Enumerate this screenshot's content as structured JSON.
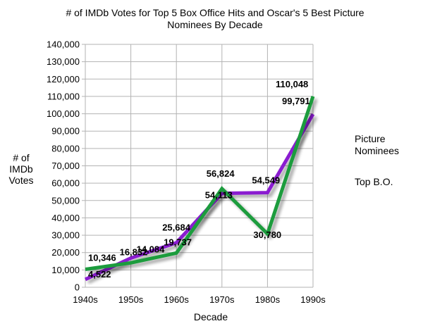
{
  "chart_data": {
    "type": "line",
    "title_lines": [
      "# of IMDb Votes for Top 5 Box Office Hits and Oscar's 5 Best Picture",
      "Nominees By Decade"
    ],
    "xlabel": "Decade",
    "ylabel_lines": [
      "# of",
      "IMDb",
      "Votes"
    ],
    "categories": [
      "1940s",
      "1950s",
      "1960s",
      "1970s",
      "1980s",
      "1990s"
    ],
    "ylim": [
      0,
      140000
    ],
    "y_ticks": [
      "0",
      "10,000",
      "20,000",
      "30,000",
      "40,000",
      "50,000",
      "60,000",
      "70,000",
      "80,000",
      "90,000",
      "100,000",
      "110,000",
      "120,000",
      "130,000",
      "140,000"
    ],
    "grid": true,
    "legend_position": "right",
    "series": [
      {
        "name": "Picture Nominees",
        "legend_lines": [
          "Picture",
          "Nominees"
        ],
        "color": "#1a9c3e",
        "values": [
          10346,
          14084,
          19737,
          56824,
          30780,
          110048
        ],
        "labels": [
          "10,346",
          "14,084",
          "19,737",
          "56,824",
          "30,780",
          "110,048"
        ]
      },
      {
        "name": "Top B.O.",
        "legend_lines": [
          "Top B.O."
        ],
        "color": "#8a1ad0",
        "values": [
          4522,
          16832,
          25684,
          54113,
          54549,
          99791
        ],
        "labels": [
          "4,522",
          "16,832",
          "25,684",
          "54,113",
          "54,549",
          "99,791"
        ]
      }
    ]
  }
}
